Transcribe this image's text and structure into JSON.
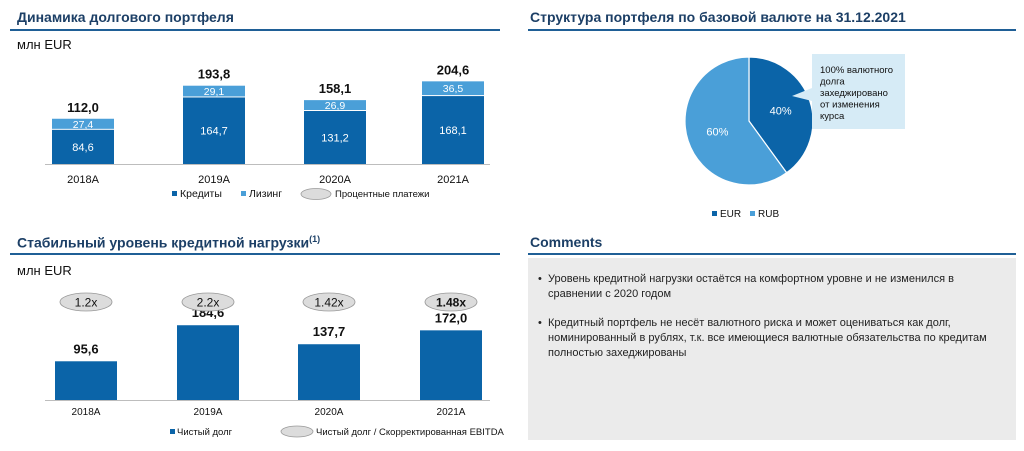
{
  "debt_section": {
    "title": "Динамика долгового портфеля",
    "unit": "млн EUR"
  },
  "currency_section": {
    "title": "Структура портфеля по базовой валюте на 31.12.2021",
    "callout": [
      "100% валютного",
      "долга",
      "захеджировано",
      "от изменения",
      "курса"
    ]
  },
  "leverage_section": {
    "title": "Стабильный уровень кредитной нагрузки",
    "title_sup": "(1)",
    "unit": "млн EUR"
  },
  "comments_section": {
    "title": "Comments",
    "items": [
      "Уровень кредитной нагрузки остаётся на комфортном уровне и не изменился в сравнении с 2020 годом",
      "Кредитный портфель не несёт валютного риска и может оцениваться как долг, номинированный в рублях, т.к. все имеющиеся валютные обязательства по кредитам полностью захеджированы"
    ]
  },
  "colors": {
    "dark_blue": "#0b64a8",
    "light_blue": "#4a9fd8",
    "title": "#1c3f66",
    "rule": "#1f5f96",
    "oval": "#dcdcdc",
    "callout_bg": "#d6ebf6"
  },
  "chart_data": [
    {
      "type": "bar",
      "stacked": true,
      "categories": [
        "2018A",
        "2019A",
        "2020A",
        "2021A"
      ],
      "series": [
        {
          "name": "Кредиты",
          "values": [
            84.6,
            164.7,
            131.2,
            168.1
          ],
          "labels": [
            "84,6",
            "164,7",
            "131,2",
            "168,1"
          ]
        },
        {
          "name": "Лизинг",
          "values": [
            27.4,
            29.1,
            26.9,
            36.5
          ],
          "labels": [
            "27,4",
            "29,1",
            "26,9",
            "36,5"
          ]
        }
      ],
      "totals": [
        "112,0",
        "193,8",
        "158,1",
        "204,6"
      ],
      "legend": [
        "Кредиты",
        "Лизинг",
        "Процентные платежи"
      ],
      "ylim": [
        0,
        230
      ],
      "legend_position": "bottom"
    },
    {
      "type": "pie",
      "slices": [
        {
          "name": "EUR",
          "value": 40,
          "label": "40%"
        },
        {
          "name": "RUB",
          "value": 60,
          "label": "60%"
        }
      ],
      "legend": [
        "EUR",
        "RUB"
      ],
      "legend_position": "bottom"
    },
    {
      "type": "bar",
      "categories": [
        "2018A",
        "2019A",
        "2020A",
        "2021A"
      ],
      "series": [
        {
          "name": "Чистый долг",
          "values": [
            95.6,
            184.6,
            137.7,
            172.0
          ],
          "labels": [
            "95,6",
            "184,6",
            "137,7",
            "172,0"
          ]
        }
      ],
      "ratios": [
        "1.2x",
        "2.2x",
        "1.42x",
        "1.48x"
      ],
      "ratio_bold": [
        false,
        false,
        false,
        true
      ],
      "legend": [
        "Чистый долг",
        "Чистый долг / Скорректированная EBITDA"
      ],
      "ylim": [
        0,
        230
      ],
      "legend_position": "bottom"
    }
  ]
}
